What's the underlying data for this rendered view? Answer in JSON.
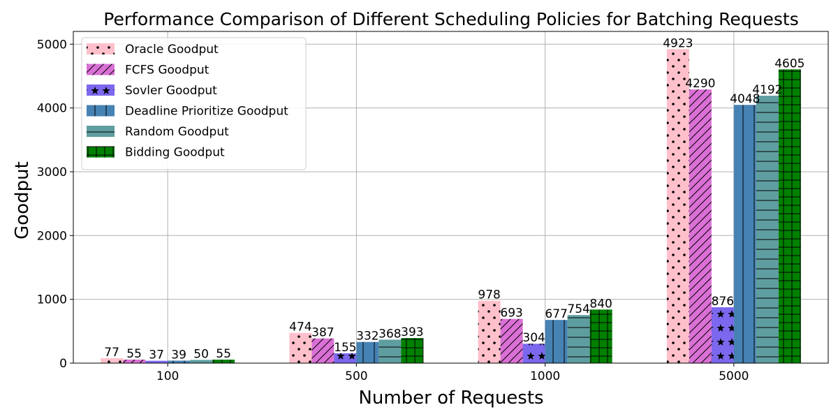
{
  "chart_data": {
    "type": "bar",
    "title": "Performance Comparison of Different Scheduling Policies for Batching Requests",
    "xlabel": "Number of Requests",
    "ylabel": "Goodput",
    "categories": [
      "100",
      "500",
      "1000",
      "5000"
    ],
    "ylim": [
      0,
      5200
    ],
    "yticks": [
      0,
      1000,
      2000,
      3000,
      4000,
      5000
    ],
    "grid": true,
    "legend_position": "top-left",
    "series": [
      {
        "name": "Oracle Goodput",
        "values": [
          77,
          474,
          978,
          4923
        ],
        "color": "#ffc0cb",
        "hatch": "dots"
      },
      {
        "name": "FCFS Goodput",
        "values": [
          55,
          387,
          693,
          4290
        ],
        "color": "#da70d6",
        "hatch": "diagonal"
      },
      {
        "name": "Sovler Goodput",
        "values": [
          37,
          155,
          304,
          876
        ],
        "color": "#7b68ee",
        "hatch": "stars"
      },
      {
        "name": "Deadline Prioritize Goodput",
        "values": [
          39,
          332,
          677,
          4048
        ],
        "color": "#4682b4",
        "hatch": "vertical"
      },
      {
        "name": "Random Goodput",
        "values": [
          50,
          368,
          754,
          4192
        ],
        "color": "#5f9ea0",
        "hatch": "horizontal"
      },
      {
        "name": "Bidding Goodput",
        "values": [
          55,
          393,
          840,
          4605
        ],
        "color": "#008000",
        "hatch": "grid"
      }
    ]
  }
}
